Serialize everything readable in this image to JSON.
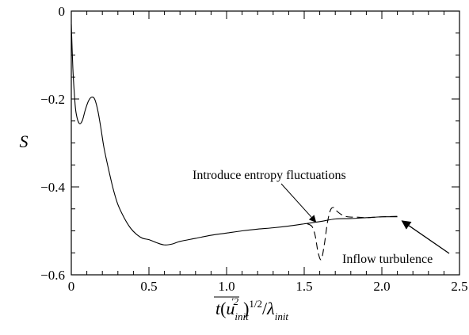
{
  "chart_data": {
    "type": "line",
    "title": "",
    "xlabel": "",
    "ylabel": "S",
    "xlim": [
      0,
      2.5
    ],
    "ylim": [
      -0.6,
      0
    ],
    "x_ticks": [
      0,
      0.5,
      1.0,
      1.5,
      2.0,
      2.5
    ],
    "x_tick_labels": [
      "0",
      "0.5",
      "1.0",
      "1.5",
      "2.0",
      "2.5"
    ],
    "y_ticks": [
      -0.6,
      -0.4,
      -0.2,
      0
    ],
    "y_tick_labels": [
      "−0.6",
      "−0.4",
      "−0.2",
      "0"
    ],
    "grid": false,
    "legend": "none",
    "series": [
      {
        "style": "solid",
        "x": [
          0,
          0.01,
          0.02,
          0.03,
          0.05,
          0.07,
          0.09,
          0.11,
          0.13,
          0.15,
          0.17,
          0.19,
          0.21,
          0.24,
          0.27,
          0.3,
          0.34,
          0.38,
          0.42,
          0.46,
          0.5,
          0.55,
          0.6,
          0.65,
          0.7,
          0.8,
          0.9,
          1.0,
          1.1,
          1.2,
          1.3,
          1.4,
          1.5,
          1.6,
          1.7,
          1.8,
          1.9,
          2.0,
          2.1
        ],
        "y": [
          -0.03,
          -0.13,
          -0.19,
          -0.23,
          -0.255,
          -0.25,
          -0.225,
          -0.205,
          -0.196,
          -0.2,
          -0.225,
          -0.265,
          -0.31,
          -0.36,
          -0.405,
          -0.44,
          -0.47,
          -0.493,
          -0.508,
          -0.517,
          -0.52,
          -0.527,
          -0.532,
          -0.53,
          -0.524,
          -0.517,
          -0.51,
          -0.505,
          -0.5,
          -0.496,
          -0.493,
          -0.489,
          -0.484,
          -0.479,
          -0.473,
          -0.472,
          -0.47,
          -0.468,
          -0.468
        ]
      },
      {
        "style": "dashed",
        "x": [
          1.52,
          1.55,
          1.57,
          1.59,
          1.61,
          1.63,
          1.65,
          1.67,
          1.69,
          1.71,
          1.74,
          1.78,
          1.85,
          1.9,
          2.0,
          2.1
        ],
        "y": [
          -0.484,
          -0.49,
          -0.51,
          -0.55,
          -0.565,
          -0.53,
          -0.48,
          -0.452,
          -0.447,
          -0.455,
          -0.463,
          -0.468,
          -0.469,
          -0.47,
          -0.468,
          -0.467
        ]
      }
    ],
    "annotations": [
      {
        "text": "Introduce entropy fluctuations",
        "arrow_to": [
          1.59,
          -0.487
        ]
      },
      {
        "text": "Inflow turbulence",
        "arrow_to": [
          2.12,
          -0.472
        ]
      }
    ]
  }
}
